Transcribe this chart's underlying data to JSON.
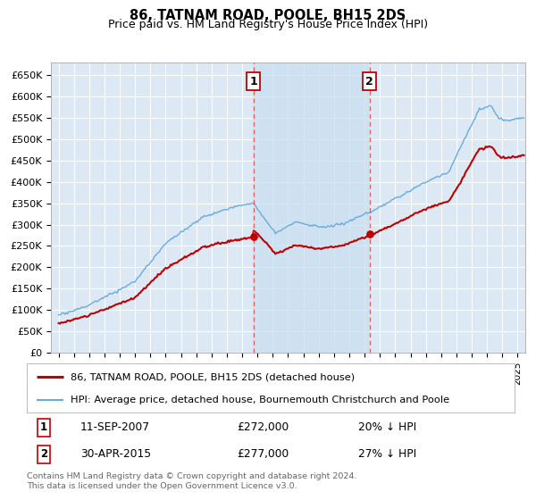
{
  "title": "86, TATNAM ROAD, POOLE, BH15 2DS",
  "subtitle": "Price paid vs. HM Land Registry's House Price Index (HPI)",
  "bg_color": "#ffffff",
  "plot_bg_color": "#dce9f5",
  "plot_bg_between": "#cfe0f0",
  "grid_color": "#ffffff",
  "hpi_color": "#6aabdc",
  "price_color": "#c00000",
  "dashed_color": "#e06060",
  "marker1_year": 2007.72,
  "marker2_year": 2015.33,
  "legend_line1": "86, TATNAM ROAD, POOLE, BH15 2DS (detached house)",
  "legend_line2": "HPI: Average price, detached house, Bournemouth Christchurch and Poole",
  "footer": "Contains HM Land Registry data © Crown copyright and database right 2024.\nThis data is licensed under the Open Government Licence v3.0.",
  "ylabel_ticks": [
    "£0",
    "£50K",
    "£100K",
    "£150K",
    "£200K",
    "£250K",
    "£300K",
    "£350K",
    "£400K",
    "£450K",
    "£500K",
    "£550K",
    "£600K",
    "£650K"
  ],
  "ytick_values": [
    0,
    50000,
    100000,
    150000,
    200000,
    250000,
    300000,
    350000,
    400000,
    450000,
    500000,
    550000,
    600000,
    650000
  ],
  "xlim_start": 1994.5,
  "xlim_end": 2025.5,
  "ylim_min": 0,
  "ylim_max": 680000,
  "price1": 272000,
  "price2": 277000
}
